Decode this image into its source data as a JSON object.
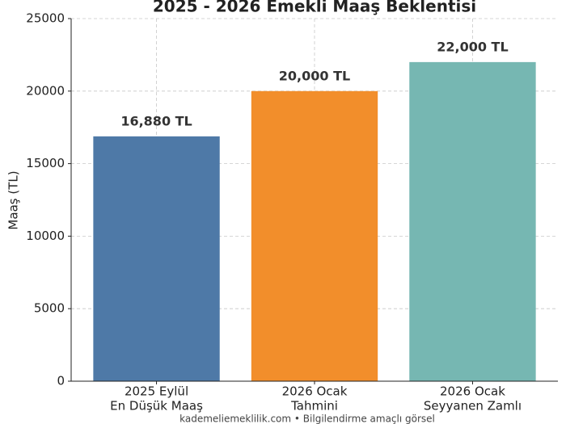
{
  "chart_data": {
    "type": "bar",
    "title": "2025 - 2026 Emekli Maaş Beklentisi",
    "y_label": "Maaş (TL)",
    "footer": "kademeliemeklilik.com • Bilgilendirme amaçlı görsel",
    "categories": [
      [
        "2025 Eylül",
        "En Düşük Maaş"
      ],
      [
        "2026 Ocak",
        "Tahmini"
      ],
      [
        "2026 Ocak",
        "Seyyanen Zamlı"
      ]
    ],
    "values": [
      16880,
      20000,
      22000
    ],
    "value_labels": [
      "16,880 TL",
      "20,000 TL",
      "22,000 TL"
    ],
    "colors": [
      "#4e79a7",
      "#f28e2b",
      "#76b7b2"
    ],
    "ylim": [
      0,
      25000
    ],
    "yticks": [
      0,
      5000,
      10000,
      15000,
      20000,
      25000
    ],
    "grid": true
  }
}
